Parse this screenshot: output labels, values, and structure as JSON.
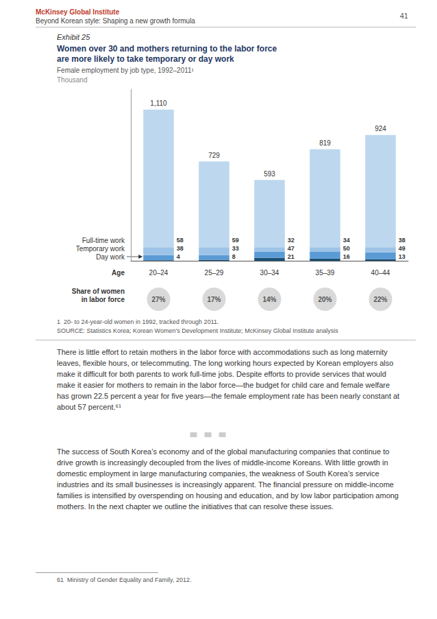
{
  "header_institute": "McKinsey Global Institute",
  "header_subtitle": "Beyond Korean style: Shaping a new growth formula",
  "header_page": "41",
  "exhibit_label": "Exhibit 25",
  "footnote1": "1  20- to 24-year-old women in 1992, tracked through 2011.",
  "source_text": "SOURCE: Statistics Korea; Korean Women’s Development Institute; McKinsey Global Institute analysis",
  "para1": "There is little effort to retain mothers in the labor force with accommodations such as long maternity leaves, flexible hours, or telecommuting. The long working hours expected by Korean employers also make it difficult for both parents to work full-time jobs. Despite efforts to provide services that would make it easier for mothers to remain in the labor force—the budget for child care and female welfare has grown 22.5 percent a year for five years—the female employment rate has been nearly constant at about 57 percent.⁶¹",
  "para2": "The success of South Korea’s economy and of the global manufacturing companies that continue to drive growth is increasingly decoupled from the lives of middle-income Koreans. With little growth in domestic employment in large manufacturing companies, the weakness of South Korea’s service industries and its small businesses is increasingly apparent. The financial pressure on middle-income families is intensified by overspending on housing and education, and by low labor participation among mothers. In the next chapter we outline the initiatives that can resolve these issues.",
  "footnote_bottom": "61  Ministry of Gender Equality and Family, 2012.",
  "chart_data": {
    "type": "bar",
    "title": "Women over 30 and mothers returning to the labor force\nare more likely to take temporary or day work",
    "title_color": "#1f3864",
    "subtitle": "Female employment by job type, 1992–2011¹",
    "unit": "Thousand",
    "xlabel": "Age",
    "categories": [
      "20–24",
      "25–29",
      "30–34",
      "35–39",
      "40–44"
    ],
    "stacked": true,
    "grid": false,
    "tick_labels": "x",
    "data_labels": true,
    "ylim": [
      0,
      1260
    ],
    "yticks": [],
    "series": [
      {
        "name": "Day work",
        "color": "#1a5276",
        "values": [
          4,
          8,
          21,
          16,
          13
        ],
        "data_labels": true
      },
      {
        "name": "Temporary work",
        "color": "#5b9bd5",
        "values": [
          38,
          33,
          47,
          50,
          49
        ],
        "data_labels": true
      },
      {
        "name": "Full-time work",
        "color": "#9dc3e6",
        "values": [
          58,
          59,
          32,
          34,
          38
        ],
        "data_labels": true
      },
      {
        "color": "#bdd7ee",
        "values": [
          1010,
          629,
          493,
          719,
          824
        ],
        "data_labels": false
      }
    ],
    "totals": {
      "values": [
        1110,
        729,
        593,
        819,
        924
      ],
      "value_labels": [
        "1,110",
        "729",
        "593",
        "819",
        "924"
      ]
    },
    "shares": {
      "name": "Share of women\nin labor force",
      "color": "#d9d9d9",
      "values": [
        27,
        17,
        14,
        20,
        22
      ],
      "value_labels": [
        "27%",
        "17%",
        "14%",
        "20%",
        "22%"
      ]
    }
  }
}
